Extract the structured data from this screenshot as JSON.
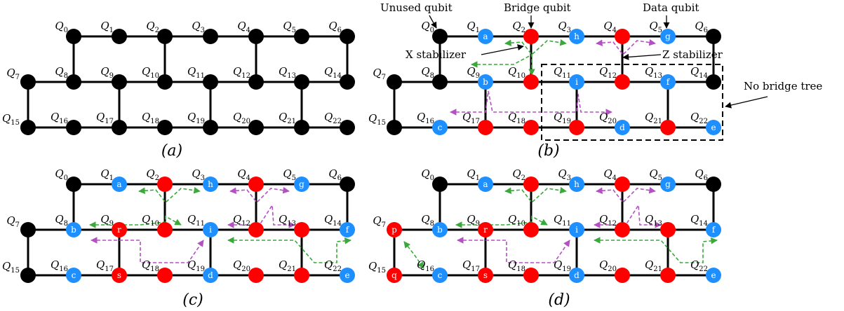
{
  "qubit_prefix": "Q",
  "panels": [
    {
      "id": "a",
      "caption": "(a)",
      "colors": {},
      "letters": {},
      "annotations": [],
      "flows": []
    },
    {
      "id": "b",
      "caption": "(b)",
      "colors": {
        "1": "blue",
        "2": "red",
        "3": "blue",
        "4": "red",
        "5": "blue",
        "9": "blue",
        "10": "red",
        "11": "blue",
        "12": "red",
        "13": "blue",
        "16": "blue",
        "17": "red",
        "18": "red",
        "19": "red",
        "20": "blue",
        "21": "red",
        "22": "blue"
      },
      "letters": {
        "1": "a",
        "3": "h",
        "5": "g",
        "9": "b",
        "11": "i",
        "13": "f",
        "16": "c",
        "20": "d",
        "22": "e"
      },
      "annotations": [
        {
          "text": "Unused qubit"
        },
        {
          "text": "Bridge qubit"
        },
        {
          "text": "Data qubit"
        },
        {
          "text": "X stabilizer"
        },
        {
          "text": "Z stabilizer"
        },
        {
          "text": "No bridge tree"
        }
      ],
      "flows": [
        "g-top",
        "p-top",
        "g-left",
        "p-low"
      ]
    },
    {
      "id": "c",
      "caption": "(c)",
      "colors": {
        "1": "blue",
        "2": "red",
        "3": "blue",
        "4": "red",
        "5": "blue",
        "8": "blue",
        "9": "red",
        "10": "red",
        "11": "blue",
        "12": "red",
        "13": "red",
        "14": "blue",
        "16": "blue",
        "17": "red",
        "18": "red",
        "19": "blue",
        "20": "red",
        "21": "red",
        "22": "blue"
      },
      "letters": {
        "1": "a",
        "3": "h",
        "5": "g",
        "8": "b",
        "9": "r",
        "11": "i",
        "14": "f",
        "16": "c",
        "17": "s",
        "19": "d",
        "22": "e"
      },
      "annotations": [],
      "flows": [
        "g-top",
        "p-top",
        "g-mid-left",
        "p-mid-right",
        "p-low-left",
        "g-low-right"
      ]
    },
    {
      "id": "d",
      "caption": "(d)",
      "colors": {
        "1": "blue",
        "2": "red",
        "3": "blue",
        "4": "red",
        "5": "blue",
        "7": "red",
        "8": "blue",
        "9": "red",
        "10": "red",
        "11": "blue",
        "12": "red",
        "13": "red",
        "14": "blue",
        "15": "red",
        "16": "blue",
        "17": "red",
        "18": "red",
        "19": "blue",
        "20": "red",
        "21": "red",
        "22": "blue"
      },
      "letters": {
        "1": "a",
        "3": "h",
        "5": "g",
        "7": "p",
        "8": "b",
        "9": "r",
        "11": "i",
        "14": "f",
        "15": "q",
        "16": "c",
        "17": "s",
        "19": "d",
        "22": "e"
      },
      "annotations": [],
      "flows": [
        "g-top",
        "p-top",
        "g-mid-left",
        "p-mid-right",
        "p-low-left",
        "g-low-right",
        "g-pq"
      ]
    }
  ],
  "palette": {
    "black": "#000000",
    "red": "#ff0000",
    "blue": "#1e8fff",
    "green": "#3aa83a",
    "purple": "#b44fc4"
  }
}
